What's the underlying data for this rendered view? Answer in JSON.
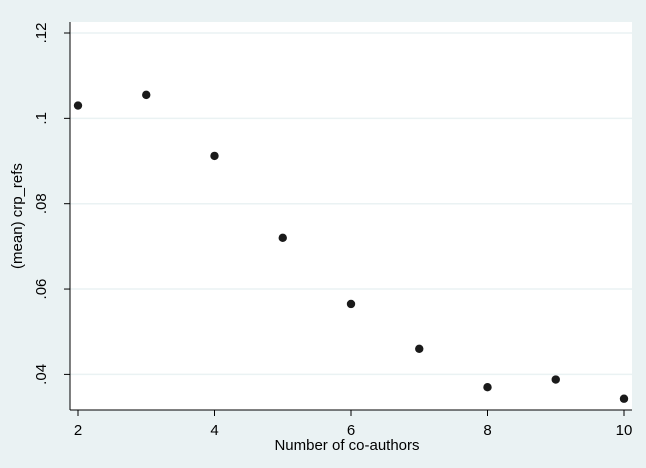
{
  "chart_data": {
    "type": "scatter",
    "title": "",
    "xlabel": "Number of co-authors",
    "ylabel": "(mean) crp_refs",
    "xlim": [
      2,
      10
    ],
    "ylim": [
      0.034,
      0.12
    ],
    "x_ticks": [
      2,
      4,
      6,
      8,
      10
    ],
    "x_tick_labels": [
      "2",
      "4",
      "6",
      "8",
      "10"
    ],
    "y_ticks": [
      0.04,
      0.06,
      0.08,
      0.1,
      0.12
    ],
    "y_tick_labels": [
      ".04",
      ".06",
      ".08",
      ".1",
      ".12"
    ],
    "grid": true,
    "series": [
      {
        "x": [
          2,
          3,
          4,
          5,
          6,
          7,
          8,
          9,
          10
        ],
        "y": [
          0.103,
          0.1055,
          0.0912,
          0.072,
          0.0565,
          0.046,
          0.037,
          0.0388,
          0.0343
        ]
      }
    ],
    "colors": {
      "background": "#eaf2f3",
      "plot_area": "#ffffff",
      "marker": "#1a1a1a",
      "grid": "#eaf2f3",
      "axis": "#000000"
    }
  }
}
